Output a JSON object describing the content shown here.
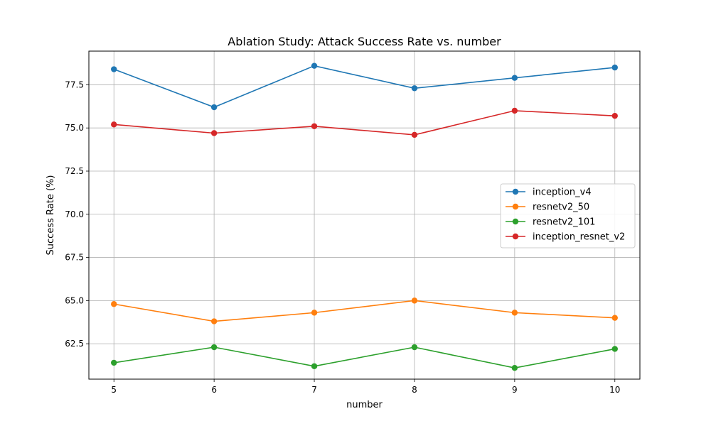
{
  "chart_data": {
    "type": "line",
    "title": "Ablation Study: Attack Success Rate vs. number",
    "xlabel": "number",
    "ylabel": "Success Rate (%)",
    "x": [
      5,
      6,
      7,
      8,
      9,
      10
    ],
    "x_tick_labels": [
      "5",
      "6",
      "7",
      "8",
      "9",
      "10"
    ],
    "xlim": [
      4.75,
      10.25
    ],
    "ylim": [
      60.45,
      79.45
    ],
    "y_ticks": [
      62.5,
      65.0,
      67.5,
      70.0,
      72.5,
      75.0,
      77.5
    ],
    "y_tick_labels": [
      "62.5",
      "65.0",
      "67.5",
      "70.0",
      "72.5",
      "75.0",
      "77.5"
    ],
    "grid": true,
    "legend_position": "center-right",
    "series": [
      {
        "name": "inception_v4",
        "color": "#1f77b4",
        "marker": "circle",
        "values": [
          78.4,
          76.2,
          78.6,
          77.3,
          77.9,
          78.5
        ]
      },
      {
        "name": "resnetv2_50",
        "color": "#ff7f0e",
        "marker": "circle",
        "values": [
          64.8,
          63.8,
          64.3,
          65.0,
          64.3,
          64.0
        ]
      },
      {
        "name": "resnetv2_101",
        "color": "#2ca02c",
        "marker": "circle",
        "values": [
          61.4,
          62.3,
          61.2,
          62.3,
          61.1,
          62.2
        ]
      },
      {
        "name": "inception_resnet_v2",
        "color": "#d62728",
        "marker": "circle",
        "values": [
          75.2,
          74.7,
          75.1,
          74.6,
          76.0,
          75.7
        ]
      }
    ]
  }
}
